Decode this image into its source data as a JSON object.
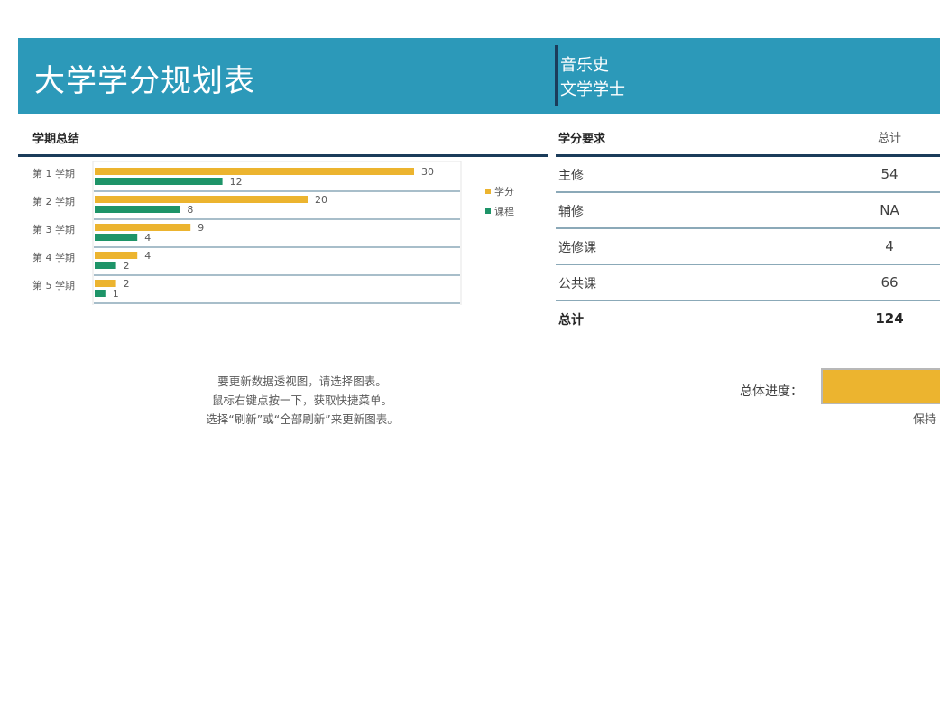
{
  "header": {
    "title": "大学学分规划表",
    "major": "音乐史",
    "degree": "文学学士"
  },
  "colors": {
    "banner": "#2c99b9",
    "credits": "#ecb42f",
    "courses": "#1e9468",
    "rule": "#1b3c5a"
  },
  "semester_summary": {
    "heading": "学期总结"
  },
  "chart_data": {
    "type": "bar",
    "orientation": "horizontal",
    "categories": [
      "第 1 学期",
      "第 2 学期",
      "第 3 学期",
      "第 4 学期",
      "第 5 学期"
    ],
    "series": [
      {
        "name": "学分",
        "values": [
          30,
          20,
          9,
          4,
          2
        ]
      },
      {
        "name": "课程",
        "values": [
          12,
          8,
          4,
          2,
          1
        ]
      }
    ],
    "xlim": [
      0,
      35
    ],
    "legend_position": "right",
    "grid": false
  },
  "requirements": {
    "heading": "学分要求",
    "total_column": "总计",
    "rows": [
      {
        "label": "主修",
        "value": "54"
      },
      {
        "label": "辅修",
        "value": "NA"
      },
      {
        "label": "选修课",
        "value": "4"
      },
      {
        "label": "公共课",
        "value": "66"
      }
    ],
    "total": {
      "label": "总计",
      "value": "124"
    }
  },
  "note": {
    "line1": "要更新数据透视图，请选择图表。",
    "line2": "鼠标右键点按一下，获取快捷菜单。",
    "line3": "选择“刷新”或“全部刷新”来更新图表。"
  },
  "progress": {
    "label": "总体进度：",
    "fraction": 1.0,
    "caption": "保持"
  }
}
